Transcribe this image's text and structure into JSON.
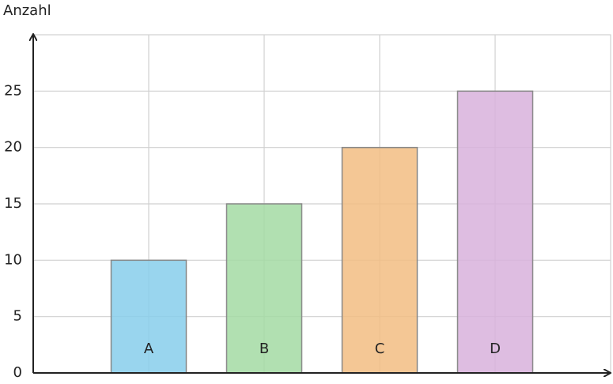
{
  "chart_data": {
    "type": "bar",
    "y_label": "Anzahl",
    "categories": [
      "A",
      "B",
      "C",
      "D"
    ],
    "values": [
      10,
      15,
      20,
      25
    ],
    "colors": [
      "#87ceeb",
      "#a3dba3",
      "#f2bd82",
      "#d8b2dc"
    ],
    "ylim": [
      0,
      30
    ],
    "yticks": [
      0,
      5,
      10,
      15,
      20,
      25
    ],
    "grid": true
  }
}
